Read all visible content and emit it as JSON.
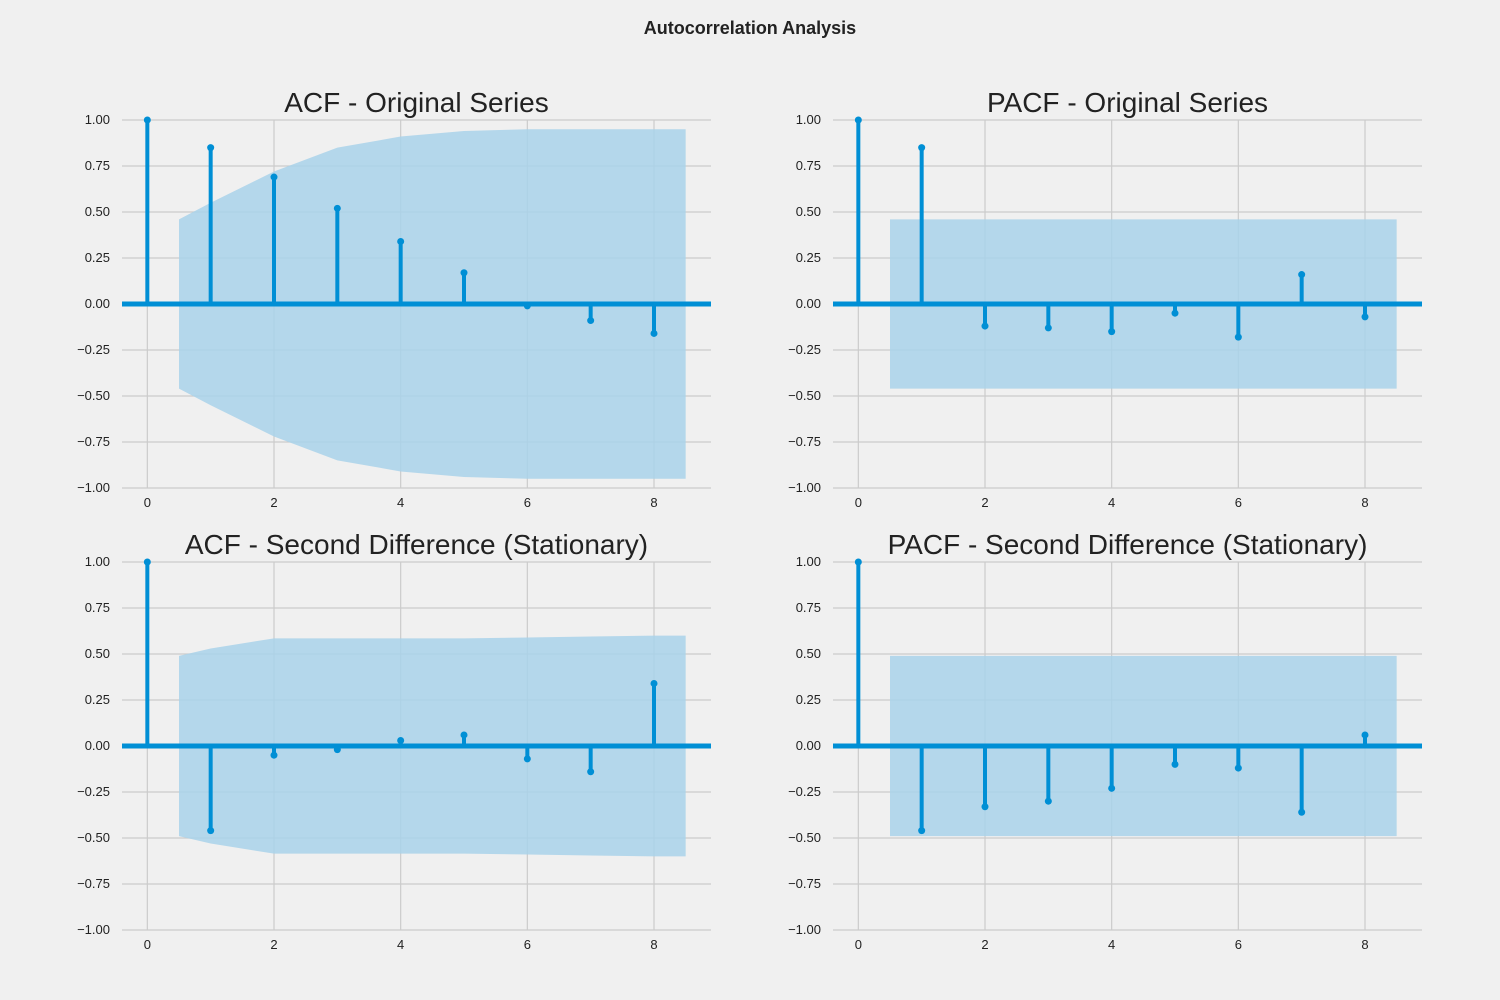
{
  "figure_title": "Autocorrelation Analysis",
  "colors": {
    "background": "#f0f0f0",
    "grid": "#cbcbcb",
    "stem": "#008fd5",
    "confidence_band": "#a9d2ea"
  },
  "chart_data": [
    {
      "type": "stem",
      "title": "ACF - Original Series",
      "xlabel": "",
      "ylabel": "",
      "xlim": [
        -0.4,
        8.9
      ],
      "ylim": [
        -1.0,
        1.0
      ],
      "xticks": [
        0,
        2,
        4,
        6,
        8
      ],
      "xtick_labels": [
        "0",
        "2",
        "4",
        "6",
        "8"
      ],
      "yticks": [
        1.0,
        0.75,
        0.5,
        0.25,
        0.0,
        -0.25,
        -0.5,
        -0.75,
        -1.0
      ],
      "ytick_labels": [
        "1.00",
        "0.75",
        "0.50",
        "0.25",
        "0.00",
        "−0.25",
        "−0.50",
        "−0.75",
        "−1.00"
      ],
      "grid": true,
      "lags": [
        0,
        1,
        2,
        3,
        4,
        5,
        6,
        7,
        8
      ],
      "values": [
        1.0,
        0.85,
        0.69,
        0.52,
        0.34,
        0.17,
        -0.01,
        -0.09,
        -0.16
      ],
      "confidence_band": {
        "x": [
          0.5,
          1,
          2,
          3,
          4,
          5,
          6,
          7,
          8,
          8.5
        ],
        "upper": [
          0.46,
          0.55,
          0.72,
          0.85,
          0.91,
          0.94,
          0.95,
          0.95,
          0.95,
          0.95
        ]
      }
    },
    {
      "type": "stem",
      "title": "PACF - Original Series",
      "xlabel": "",
      "ylabel": "",
      "xlim": [
        -0.4,
        8.9
      ],
      "ylim": [
        -1.0,
        1.0
      ],
      "xticks": [
        0,
        2,
        4,
        6,
        8
      ],
      "xtick_labels": [
        "0",
        "2",
        "4",
        "6",
        "8"
      ],
      "yticks": [
        1.0,
        0.75,
        0.5,
        0.25,
        0.0,
        -0.25,
        -0.5,
        -0.75,
        -1.0
      ],
      "ytick_labels": [
        "1.00",
        "0.75",
        "0.50",
        "0.25",
        "0.00",
        "−0.25",
        "−0.50",
        "−0.75",
        "−1.00"
      ],
      "grid": true,
      "lags": [
        0,
        1,
        2,
        3,
        4,
        5,
        6,
        7,
        8
      ],
      "values": [
        1.0,
        0.85,
        -0.12,
        -0.13,
        -0.15,
        -0.05,
        -0.18,
        0.16,
        -0.07
      ],
      "confidence_band": {
        "x": [
          0.5,
          8.5
        ],
        "upper": [
          0.46,
          0.46
        ]
      }
    },
    {
      "type": "stem",
      "title": "ACF - Second Difference (Stationary)",
      "xlabel": "",
      "ylabel": "",
      "xlim": [
        -0.4,
        8.9
      ],
      "ylim": [
        -1.0,
        1.0
      ],
      "xticks": [
        0,
        2,
        4,
        6,
        8
      ],
      "xtick_labels": [
        "0",
        "2",
        "4",
        "6",
        "8"
      ],
      "yticks": [
        1.0,
        0.75,
        0.5,
        0.25,
        0.0,
        -0.25,
        -0.5,
        -0.75,
        -1.0
      ],
      "ytick_labels": [
        "1.00",
        "0.75",
        "0.50",
        "0.25",
        "0.00",
        "−0.25",
        "−0.50",
        "−0.75",
        "−1.00"
      ],
      "grid": true,
      "lags": [
        0,
        1,
        2,
        3,
        4,
        5,
        6,
        7,
        8
      ],
      "values": [
        1.0,
        -0.46,
        -0.05,
        -0.02,
        0.03,
        0.06,
        -0.07,
        -0.14,
        0.34
      ],
      "confidence_band": {
        "x": [
          0.5,
          1,
          2,
          3,
          4,
          5,
          6,
          7,
          8,
          8.5
        ],
        "upper": [
          0.49,
          0.53,
          0.585,
          0.585,
          0.585,
          0.585,
          0.59,
          0.595,
          0.6,
          0.6
        ]
      }
    },
    {
      "type": "stem",
      "title": "PACF - Second Difference (Stationary)",
      "xlabel": "",
      "ylabel": "",
      "xlim": [
        -0.4,
        8.9
      ],
      "ylim": [
        -1.0,
        1.0
      ],
      "xticks": [
        0,
        2,
        4,
        6,
        8
      ],
      "xtick_labels": [
        "0",
        "2",
        "4",
        "6",
        "8"
      ],
      "yticks": [
        1.0,
        0.75,
        0.5,
        0.25,
        0.0,
        -0.25,
        -0.5,
        -0.75,
        -1.0
      ],
      "ytick_labels": [
        "1.00",
        "0.75",
        "0.50",
        "0.25",
        "0.00",
        "−0.25",
        "−0.50",
        "−0.75",
        "−1.00"
      ],
      "grid": true,
      "lags": [
        0,
        1,
        2,
        3,
        4,
        5,
        6,
        7,
        8
      ],
      "values": [
        1.0,
        -0.46,
        -0.33,
        -0.3,
        -0.23,
        -0.1,
        -0.12,
        -0.36,
        0.06
      ],
      "confidence_band": {
        "x": [
          0.5,
          8.5
        ],
        "upper": [
          0.49,
          0.49
        ]
      }
    }
  ]
}
